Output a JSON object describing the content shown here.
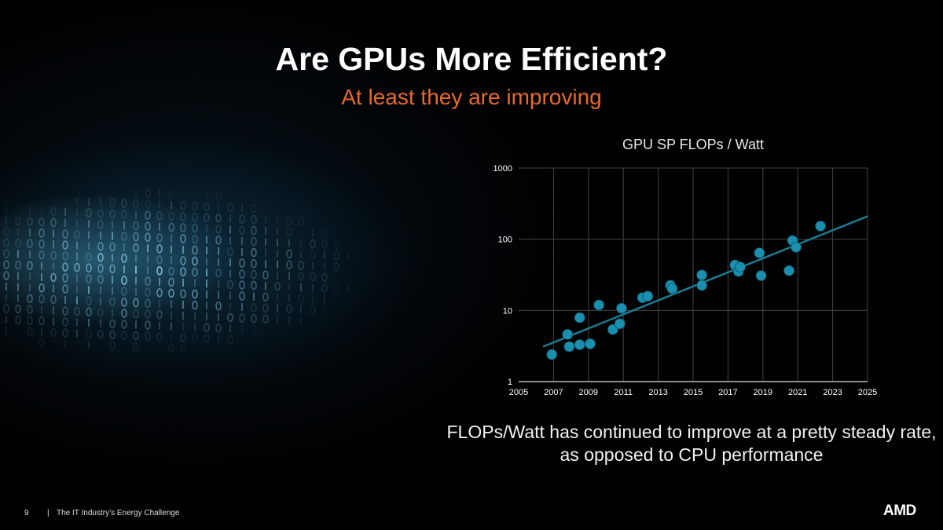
{
  "slide": {
    "title": "Are GPUs More Efficient?",
    "subtitle": "At least they are improving",
    "caption": "FLOPs/Watt has continued to improve at a pretty steady rate, as opposed to CPU performance",
    "footer": {
      "page_number": "9",
      "separator": "|",
      "text": "The IT Industry’s Energy Challenge"
    },
    "logo": "AMD",
    "colors": {
      "accent": "#e8692b",
      "series": "#1a8fae",
      "trend": "#1c7b93"
    }
  },
  "chart_data": {
    "type": "scatter",
    "title": "GPU SP FLOPs / Watt",
    "xlabel": "",
    "ylabel": "",
    "xlim": [
      2005,
      2025
    ],
    "ylim": [
      1,
      1000
    ],
    "yscale": "log",
    "x_ticks": [
      "2005",
      "2007",
      "2009",
      "2011",
      "2013",
      "2015",
      "2017",
      "2019",
      "2021",
      "2023",
      "2025"
    ],
    "y_ticks": [
      "1",
      "10",
      "100",
      "1000"
    ],
    "grid": true,
    "points": [
      [
        2006.9,
        2.4
      ],
      [
        2007.8,
        4.6
      ],
      [
        2007.9,
        3.1
      ],
      [
        2008.5,
        7.9
      ],
      [
        2008.5,
        3.3
      ],
      [
        2009.1,
        3.4
      ],
      [
        2009.6,
        11.9
      ],
      [
        2010.4,
        5.4
      ],
      [
        2010.8,
        6.5
      ],
      [
        2010.9,
        10.7
      ],
      [
        2012.1,
        15.1
      ],
      [
        2012.4,
        15.8
      ],
      [
        2013.7,
        22.5
      ],
      [
        2013.8,
        20.3
      ],
      [
        2015.5,
        31.4
      ],
      [
        2015.5,
        22.5
      ],
      [
        2017.4,
        43.4
      ],
      [
        2017.6,
        35.3
      ],
      [
        2017.7,
        40.8
      ],
      [
        2018.8,
        64.2
      ],
      [
        2018.9,
        30.8
      ],
      [
        2020.5,
        36.2
      ],
      [
        2020.7,
        95.8
      ],
      [
        2020.9,
        77.4
      ],
      [
        2022.3,
        153
      ]
    ],
    "trendline": {
      "type": "exponential",
      "from": [
        2006.4,
        3.1
      ],
      "to": [
        2025,
        210
      ]
    }
  }
}
